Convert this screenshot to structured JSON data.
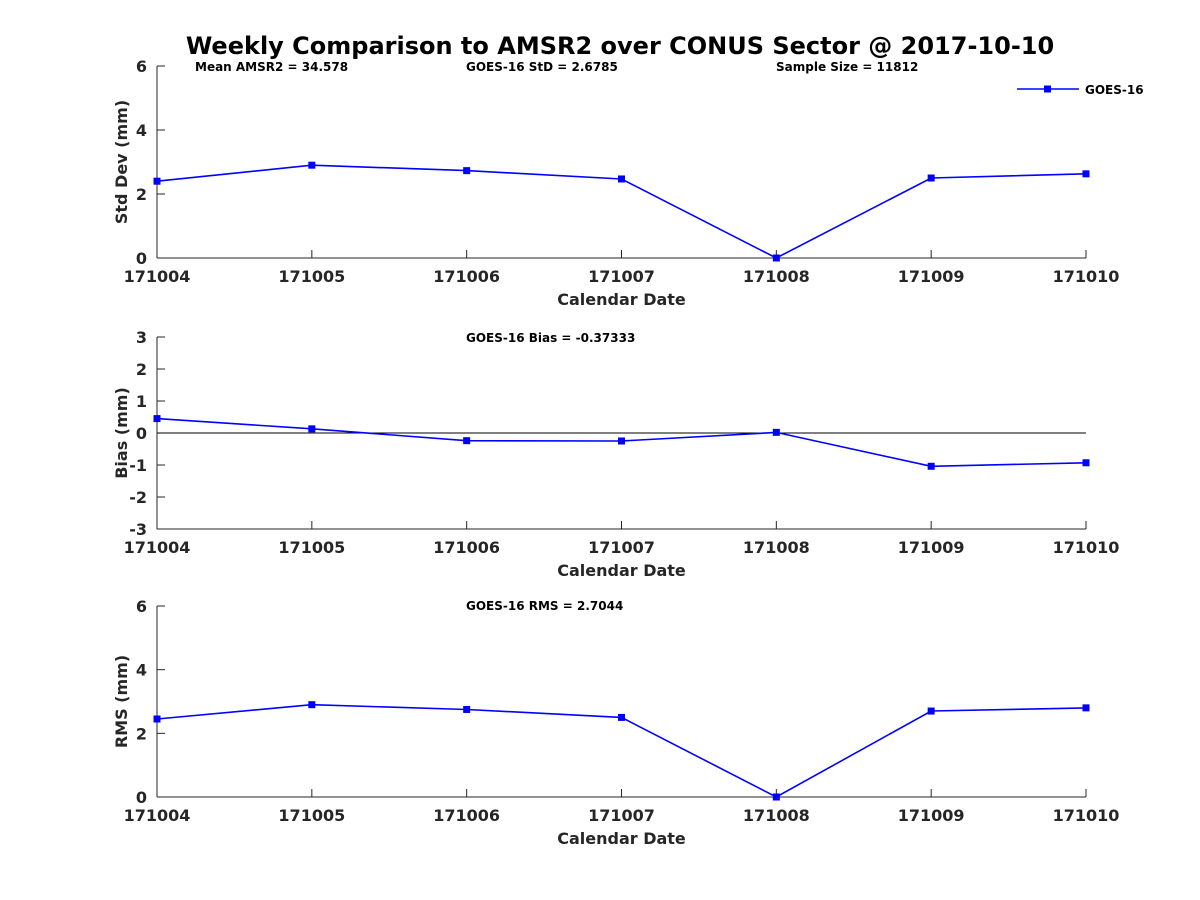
{
  "title": "Weekly Comparison to AMSR2 over CONUS Sector @ 2017-10-10",
  "series_color": "#0000ff",
  "chart_data": [
    {
      "type": "line",
      "id": "stddev",
      "categories": [
        "171004",
        "171005",
        "171006",
        "171007",
        "171008",
        "171009",
        "171010"
      ],
      "series": [
        {
          "name": "GOES-16",
          "values": [
            2.4,
            2.9,
            2.73,
            2.47,
            0.0,
            2.5,
            2.63
          ]
        }
      ],
      "xlabel": "Calendar Date",
      "ylabel": "Std Dev (mm)",
      "ylim": [
        0,
        6
      ],
      "yticks": [
        "0",
        "2",
        "4",
        "6"
      ],
      "annotations": [
        "Mean AMSR2 = 34.578",
        "GOES-16 StD = 2.6785",
        "Sample Size = 11812"
      ],
      "legend": "GOES-16",
      "legend_position": "top-right",
      "zero_line": false
    },
    {
      "type": "line",
      "id": "bias",
      "categories": [
        "171004",
        "171005",
        "171006",
        "171007",
        "171008",
        "171009",
        "171010"
      ],
      "series": [
        {
          "name": "GOES-16",
          "values": [
            0.45,
            0.13,
            -0.24,
            -0.25,
            0.02,
            -1.04,
            -0.93
          ]
        }
      ],
      "xlabel": "Calendar Date",
      "ylabel": "Bias (mm)",
      "ylim": [
        -3,
        3
      ],
      "yticks": [
        "-3",
        "-2",
        "-1",
        "0",
        "1",
        "2",
        "3"
      ],
      "annotations": [
        "GOES-16 Bias  = -0.37333"
      ],
      "zero_line": true
    },
    {
      "type": "line",
      "id": "rms",
      "categories": [
        "171004",
        "171005",
        "171006",
        "171007",
        "171008",
        "171009",
        "171010"
      ],
      "series": [
        {
          "name": "GOES-16",
          "values": [
            2.45,
            2.9,
            2.75,
            2.5,
            0.0,
            2.7,
            2.8
          ]
        }
      ],
      "xlabel": "Calendar Date",
      "ylabel": "RMS (mm)",
      "ylim": [
        0,
        6
      ],
      "yticks": [
        "0",
        "2",
        "4",
        "6"
      ],
      "annotations": [
        "GOES-16 RMS = 2.7044"
      ],
      "zero_line": false
    }
  ]
}
